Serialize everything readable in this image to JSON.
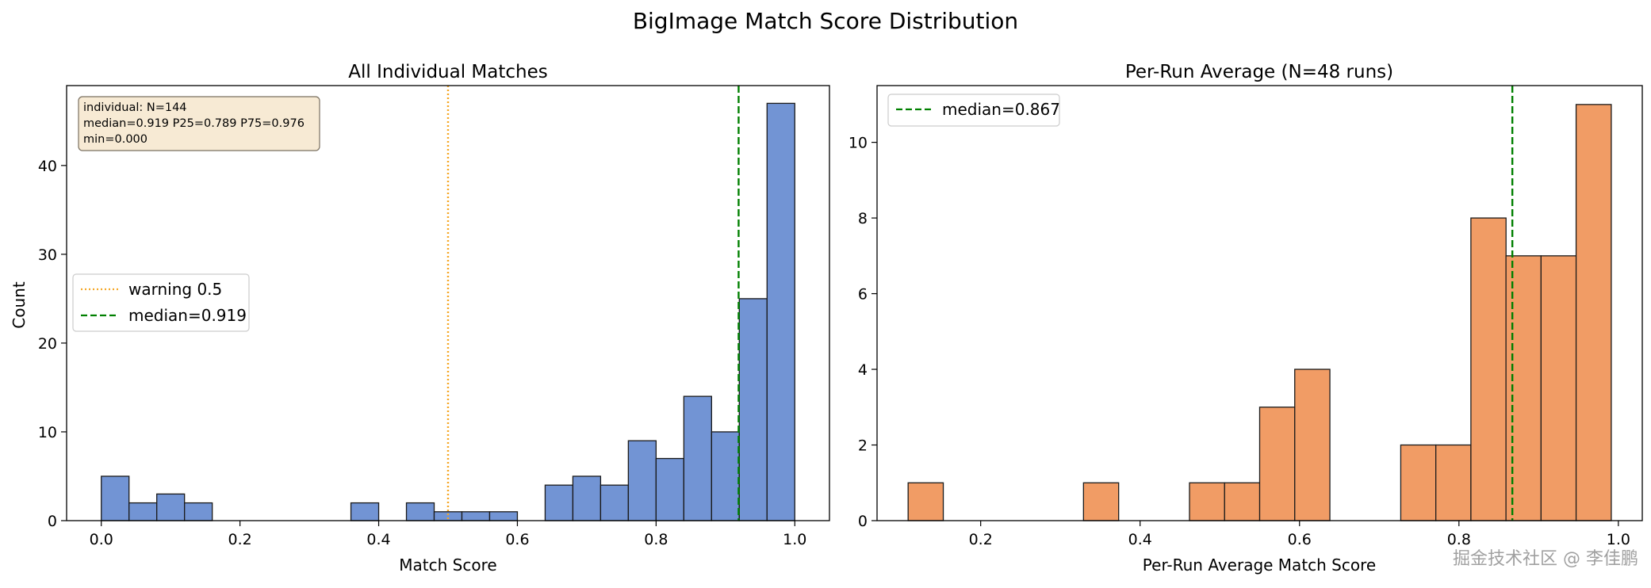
{
  "figure_title": "BigImage Match Score Distribution",
  "watermark": "掘金技术社区 @ 李佳鹏",
  "colors": {
    "left_bar": "#7294d4",
    "right_bar": "#f19c65",
    "warning_line": "#f5a623",
    "median_line": "#008000",
    "stats_box_fill": "#f7ead4"
  },
  "chart_data": [
    {
      "type": "bar",
      "title": "All Individual Matches",
      "xlabel": "Match Score",
      "ylabel": "Count",
      "xlim": [
        -0.05,
        1.05
      ],
      "ylim": [
        0,
        49
      ],
      "xticks": [
        0.0,
        0.2,
        0.4,
        0.6,
        0.8,
        1.0
      ],
      "xtick_labels": [
        "0.0",
        "0.2",
        "0.4",
        "0.6",
        "0.8",
        "1.0"
      ],
      "yticks": [
        0,
        10,
        20,
        30,
        40
      ],
      "ytick_labels": [
        "0",
        "10",
        "20",
        "30",
        "40"
      ],
      "bin_width": 0.04,
      "bin_starts": [
        0.0,
        0.04,
        0.08,
        0.12,
        0.36,
        0.44,
        0.48,
        0.52,
        0.56,
        0.64,
        0.68,
        0.72,
        0.76,
        0.8,
        0.84,
        0.88,
        0.92,
        0.96
      ],
      "values": [
        5,
        2,
        3,
        2,
        2,
        2,
        1,
        1,
        1,
        4,
        5,
        4,
        9,
        7,
        14,
        10,
        25,
        47
      ],
      "vlines": [
        {
          "x": 0.5,
          "style": "dotted",
          "color": "#f5a623",
          "label": "warning 0.5"
        },
        {
          "x": 0.919,
          "style": "dashed",
          "color": "#008000",
          "label": "median=0.919"
        }
      ],
      "legend": {
        "placement": "center-left",
        "entries": [
          "warning 0.5",
          "median=0.919"
        ]
      },
      "annotation": [
        "individual: N=144",
        "median=0.919 P25=0.789 P75=0.976",
        "min=0.000"
      ],
      "grid": false
    },
    {
      "type": "bar",
      "title": "Per-Run Average (N=48 runs)",
      "xlabel": "Per-Run Average Match Score",
      "ylabel": "",
      "xlim": [
        0.07,
        1.03
      ],
      "ylim": [
        0,
        11.5
      ],
      "xticks": [
        0.2,
        0.4,
        0.6,
        0.8,
        1.0
      ],
      "xtick_labels": [
        "0.2",
        "0.4",
        "0.6",
        "0.8",
        "1.0"
      ],
      "yticks": [
        0,
        2,
        4,
        6,
        8,
        10
      ],
      "ytick_labels": [
        "0",
        "2",
        "4",
        "6",
        "8",
        "10"
      ],
      "bin_width": 0.0441,
      "bin_starts": [
        0.109,
        0.329,
        0.462,
        0.506,
        0.55,
        0.594,
        0.727,
        0.771,
        0.815,
        0.859,
        0.903,
        0.947
      ],
      "values": [
        1,
        1,
        1,
        1,
        3,
        4,
        2,
        2,
        8,
        7,
        7,
        11
      ],
      "vlines": [
        {
          "x": 0.867,
          "style": "dashed",
          "color": "#008000",
          "label": "median=0.867"
        }
      ],
      "legend": {
        "placement": "top-left",
        "entries": [
          "median=0.867"
        ]
      },
      "grid": false
    }
  ]
}
